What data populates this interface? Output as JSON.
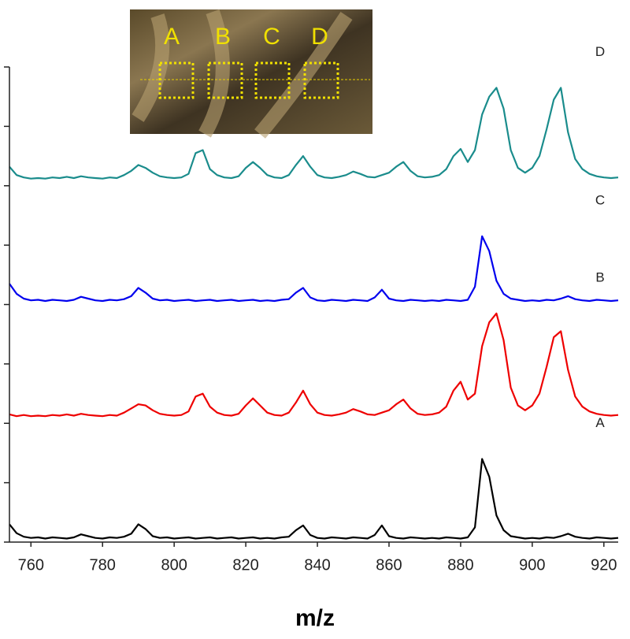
{
  "chart_data": {
    "type": "line",
    "xlabel": "m/z",
    "xlim": [
      754,
      924
    ],
    "xticks": [
      760,
      780,
      800,
      820,
      840,
      860,
      880,
      900,
      920
    ],
    "ylim": [
      0,
      8
    ],
    "yticks": [
      {
        "value": 0,
        "label": null
      },
      {
        "value": 1,
        "label": null
      },
      {
        "value": 2,
        "label": null
      },
      {
        "value": 3,
        "label": null
      },
      {
        "value": 4,
        "label": null
      },
      {
        "value": 5,
        "label": null
      },
      {
        "value": 6,
        "label": null
      },
      {
        "value": 7,
        "label": null
      },
      {
        "value": 8,
        "label": null
      }
    ],
    "x": [
      754,
      756,
      758,
      760,
      762,
      764,
      766,
      768,
      770,
      772,
      774,
      776,
      778,
      780,
      782,
      784,
      786,
      788,
      790,
      792,
      794,
      796,
      798,
      800,
      802,
      804,
      806,
      808,
      810,
      812,
      814,
      816,
      818,
      820,
      822,
      824,
      826,
      828,
      830,
      832,
      834,
      836,
      838,
      840,
      842,
      844,
      846,
      848,
      850,
      852,
      854,
      856,
      858,
      860,
      862,
      864,
      866,
      868,
      870,
      872,
      874,
      876,
      878,
      880,
      882,
      884,
      886,
      888,
      890,
      892,
      894,
      896,
      898,
      900,
      902,
      904,
      906,
      908,
      910,
      912,
      914,
      916,
      918,
      920,
      922,
      924
    ],
    "series": [
      {
        "name": "A",
        "color": "#000000",
        "values": [
          0.3,
          0.15,
          0.09,
          0.07,
          0.08,
          0.06,
          0.08,
          0.07,
          0.06,
          0.08,
          0.13,
          0.1,
          0.07,
          0.06,
          0.08,
          0.07,
          0.09,
          0.14,
          0.3,
          0.22,
          0.1,
          0.07,
          0.08,
          0.06,
          0.07,
          0.08,
          0.06,
          0.07,
          0.08,
          0.06,
          0.07,
          0.08,
          0.06,
          0.07,
          0.08,
          0.06,
          0.07,
          0.06,
          0.08,
          0.09,
          0.2,
          0.28,
          0.12,
          0.07,
          0.06,
          0.08,
          0.07,
          0.06,
          0.08,
          0.07,
          0.06,
          0.12,
          0.28,
          0.1,
          0.07,
          0.06,
          0.08,
          0.07,
          0.06,
          0.07,
          0.06,
          0.08,
          0.07,
          0.06,
          0.08,
          0.25,
          1.4,
          1.1,
          0.45,
          0.2,
          0.1,
          0.08,
          0.06,
          0.07,
          0.06,
          0.08,
          0.07,
          0.1,
          0.14,
          0.09,
          0.07,
          0.06,
          0.08,
          0.07,
          0.06,
          0.07
        ]
      },
      {
        "name": "B",
        "color": "#ee0000",
        "values": [
          2.15,
          2.12,
          2.14,
          2.12,
          2.13,
          2.12,
          2.14,
          2.13,
          2.15,
          2.13,
          2.16,
          2.14,
          2.13,
          2.12,
          2.14,
          2.13,
          2.18,
          2.25,
          2.32,
          2.3,
          2.22,
          2.16,
          2.14,
          2.13,
          2.14,
          2.2,
          2.45,
          2.5,
          2.28,
          2.18,
          2.14,
          2.13,
          2.16,
          2.3,
          2.42,
          2.3,
          2.18,
          2.14,
          2.13,
          2.18,
          2.35,
          2.55,
          2.32,
          2.18,
          2.14,
          2.13,
          2.15,
          2.18,
          2.24,
          2.2,
          2.15,
          2.14,
          2.18,
          2.22,
          2.32,
          2.4,
          2.25,
          2.16,
          2.14,
          2.15,
          2.18,
          2.28,
          2.55,
          2.7,
          2.4,
          2.5,
          3.3,
          3.7,
          3.85,
          3.4,
          2.6,
          2.3,
          2.22,
          2.3,
          2.5,
          2.95,
          3.45,
          3.55,
          2.9,
          2.45,
          2.28,
          2.2,
          2.16,
          2.14,
          2.13,
          2.14
        ]
      },
      {
        "name": "C",
        "color": "#0000ee",
        "values": [
          4.35,
          4.18,
          4.1,
          4.07,
          4.08,
          4.06,
          4.08,
          4.07,
          4.06,
          4.08,
          4.13,
          4.1,
          4.07,
          4.06,
          4.08,
          4.07,
          4.09,
          4.14,
          4.28,
          4.2,
          4.1,
          4.07,
          4.08,
          4.06,
          4.07,
          4.08,
          4.06,
          4.07,
          4.08,
          4.06,
          4.07,
          4.08,
          4.06,
          4.07,
          4.08,
          4.06,
          4.07,
          4.06,
          4.08,
          4.09,
          4.2,
          4.28,
          4.12,
          4.07,
          4.06,
          4.08,
          4.07,
          4.06,
          4.08,
          4.07,
          4.06,
          4.12,
          4.25,
          4.1,
          4.07,
          4.06,
          4.08,
          4.07,
          4.06,
          4.07,
          4.06,
          4.08,
          4.07,
          4.06,
          4.08,
          4.3,
          5.15,
          4.9,
          4.4,
          4.18,
          4.1,
          4.08,
          4.06,
          4.07,
          4.06,
          4.08,
          4.07,
          4.1,
          4.14,
          4.09,
          4.07,
          4.06,
          4.08,
          4.07,
          4.06,
          4.07
        ]
      },
      {
        "name": "D",
        "color": "#1a8c8c",
        "values": [
          6.32,
          6.18,
          6.14,
          6.12,
          6.13,
          6.12,
          6.14,
          6.13,
          6.15,
          6.13,
          6.16,
          6.14,
          6.13,
          6.12,
          6.14,
          6.13,
          6.18,
          6.25,
          6.35,
          6.3,
          6.22,
          6.16,
          6.14,
          6.13,
          6.14,
          6.2,
          6.55,
          6.6,
          6.28,
          6.18,
          6.14,
          6.13,
          6.16,
          6.3,
          6.4,
          6.3,
          6.18,
          6.14,
          6.13,
          6.18,
          6.35,
          6.5,
          6.32,
          6.18,
          6.14,
          6.13,
          6.15,
          6.18,
          6.24,
          6.2,
          6.15,
          6.14,
          6.18,
          6.22,
          6.32,
          6.4,
          6.25,
          6.16,
          6.14,
          6.15,
          6.18,
          6.28,
          6.5,
          6.62,
          6.4,
          6.6,
          7.2,
          7.5,
          7.65,
          7.3,
          6.6,
          6.3,
          6.22,
          6.3,
          6.5,
          6.95,
          7.45,
          7.65,
          6.9,
          6.45,
          6.28,
          6.2,
          6.16,
          6.14,
          6.13,
          6.14
        ]
      }
    ]
  },
  "inset": {
    "labels": [
      "A",
      "B",
      "C",
      "D"
    ]
  }
}
